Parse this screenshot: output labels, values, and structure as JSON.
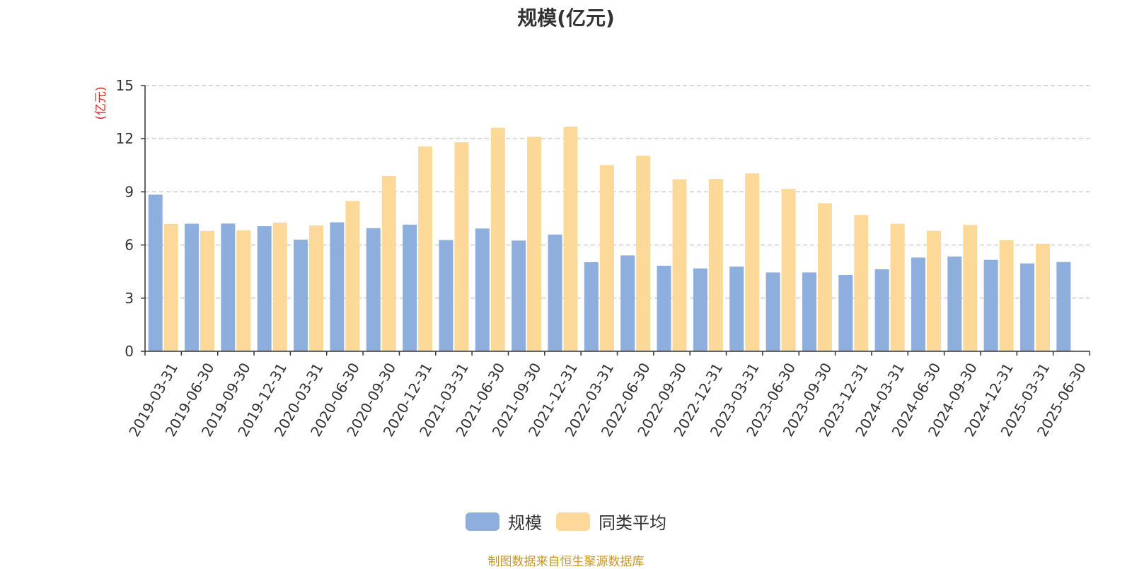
{
  "chart_data": {
    "type": "bar",
    "title": "规模(亿元)",
    "ylabel": "(亿元)",
    "ylim": [
      0,
      15
    ],
    "yticks": [
      0,
      3,
      6,
      9,
      12,
      15
    ],
    "grid": true,
    "legend_position": "bottom",
    "categories": [
      "2019-03-31",
      "2019-06-30",
      "2019-09-30",
      "2019-12-31",
      "2020-03-31",
      "2020-06-30",
      "2020-09-30",
      "2020-12-31",
      "2021-03-31",
      "2021-06-30",
      "2021-09-30",
      "2021-12-31",
      "2022-03-31",
      "2022-06-30",
      "2022-09-30",
      "2022-12-31",
      "2023-03-31",
      "2023-06-30",
      "2023-09-30",
      "2023-12-31",
      "2024-03-31",
      "2024-06-30",
      "2024-09-30",
      "2024-12-31",
      "2025-03-31",
      "2025-06-30"
    ],
    "series": [
      {
        "name": "规模",
        "color": "#8eaede",
        "values": [
          8.84,
          7.2,
          7.21,
          7.06,
          6.3,
          7.28,
          6.95,
          7.15,
          6.28,
          6.93,
          6.25,
          6.59,
          5.03,
          5.41,
          4.83,
          4.68,
          4.78,
          4.45,
          4.45,
          4.31,
          4.63,
          5.29,
          5.35,
          5.16,
          4.96,
          5.04
        ]
      },
      {
        "name": "同类平均",
        "color": "#fcd899",
        "values": [
          7.19,
          6.79,
          6.83,
          7.26,
          7.11,
          8.48,
          9.9,
          11.56,
          11.8,
          12.62,
          12.11,
          12.67,
          10.51,
          11.03,
          9.71,
          9.73,
          10.04,
          9.17,
          8.36,
          7.69,
          7.2,
          6.8,
          7.13,
          6.27,
          6.07,
          null
        ]
      }
    ]
  },
  "source_note": "制图数据来自恒生聚源数据库",
  "colors": {
    "ylabel": "#e8251d",
    "source_note": "#c8962a",
    "axis": "#333333",
    "grid": "#cccccc"
  }
}
